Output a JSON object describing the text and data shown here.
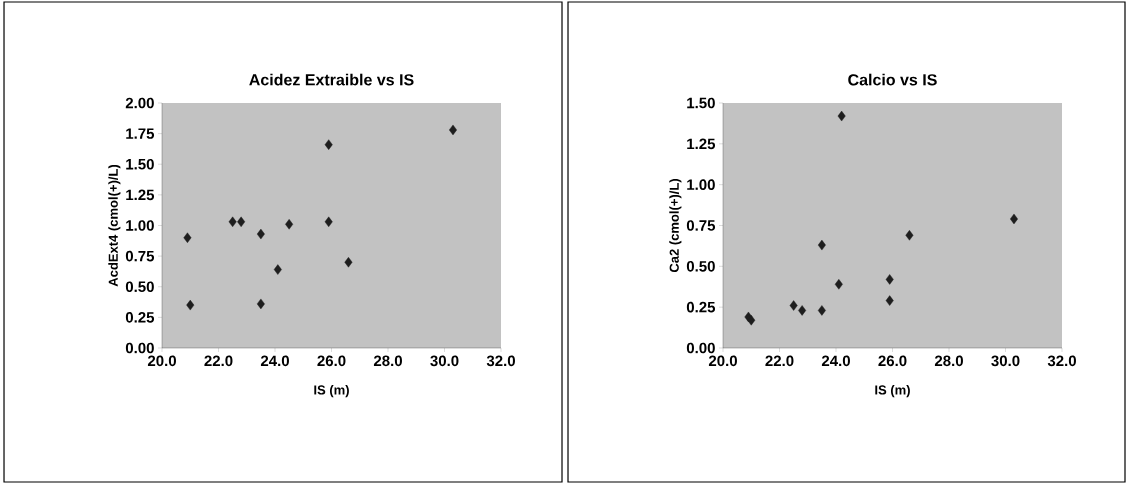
{
  "chart_data": [
    {
      "type": "scatter",
      "title": "Acidez Extraible vs IS",
      "xlabel": "IS (m)",
      "ylabel": "AcdExt4 (cmol(+)/L)",
      "color": "#1e1e1e",
      "marker": "diamond",
      "x": [
        20.9,
        21.0,
        22.5,
        22.8,
        23.5,
        23.5,
        24.1,
        24.5,
        25.9,
        25.9,
        26.6,
        30.3
      ],
      "values": [
        0.9,
        0.35,
        1.03,
        1.03,
        0.93,
        0.36,
        0.64,
        1.01,
        1.03,
        1.66,
        0.7,
        1.78
      ],
      "xlim": [
        20,
        32
      ],
      "ylim": [
        0,
        2
      ],
      "xticks": [
        {
          "value": 20,
          "label": "20.0"
        },
        {
          "value": 22,
          "label": "22.0"
        },
        {
          "value": 24,
          "label": "24.0"
        },
        {
          "value": 26,
          "label": "26.0"
        },
        {
          "value": 28,
          "label": "28.0"
        },
        {
          "value": 30,
          "label": "30.0"
        },
        {
          "value": 32,
          "label": "32.0"
        }
      ],
      "yticks": [
        {
          "value": 0,
          "label": "0.00"
        },
        {
          "value": 0.25,
          "label": "0.25"
        },
        {
          "value": 0.5,
          "label": "0.50"
        },
        {
          "value": 0.75,
          "label": "0.75"
        },
        {
          "value": 1,
          "label": "1.00"
        },
        {
          "value": 1.25,
          "label": "1.25"
        },
        {
          "value": 1.5,
          "label": "1.50"
        },
        {
          "value": 1.75,
          "label": "1.75"
        },
        {
          "value": 2,
          "label": "2.00"
        }
      ]
    },
    {
      "type": "scatter",
      "title": "Calcio vs IS",
      "xlabel": "IS (m)",
      "ylabel": "Ca2 (cmol(+)/L)",
      "color": "#1e1e1e",
      "marker": "diamond",
      "x": [
        20.9,
        21.0,
        22.5,
        22.8,
        23.5,
        23.5,
        24.1,
        24.2,
        25.9,
        25.9,
        26.6,
        30.3
      ],
      "values": [
        0.19,
        0.17,
        0.26,
        0.23,
        0.63,
        0.23,
        0.39,
        1.42,
        0.29,
        0.42,
        0.69,
        0.79
      ],
      "xlim": [
        20,
        32
      ],
      "ylim": [
        0,
        1.5
      ],
      "xticks": [
        {
          "value": 20,
          "label": "20.0"
        },
        {
          "value": 22,
          "label": "22.0"
        },
        {
          "value": 24,
          "label": "24.0"
        },
        {
          "value": 26,
          "label": "26.0"
        },
        {
          "value": 28,
          "label": "28.0"
        },
        {
          "value": 30,
          "label": "30.0"
        },
        {
          "value": 32,
          "label": "32.0"
        }
      ],
      "yticks": [
        {
          "value": 0,
          "label": "0.00"
        },
        {
          "value": 0.25,
          "label": "0.25"
        },
        {
          "value": 0.5,
          "label": "0.50"
        },
        {
          "value": 0.75,
          "label": "0.75"
        },
        {
          "value": 1,
          "label": "1.00"
        },
        {
          "value": 1.25,
          "label": "1.25"
        },
        {
          "value": 1.5,
          "label": "1.50"
        }
      ]
    }
  ]
}
